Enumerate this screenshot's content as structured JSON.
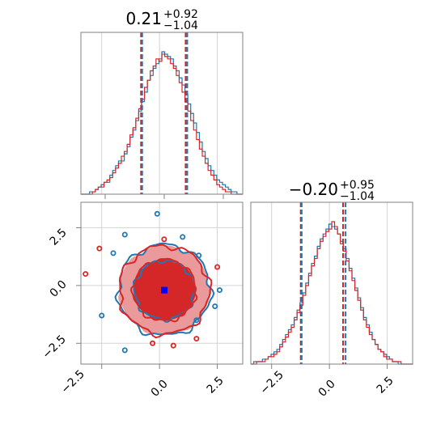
{
  "colors": {
    "blue": "#1f77b4",
    "red": "#d62728",
    "red_light": "#eb9a9b",
    "marker": "#0000ff",
    "grid": "#d3d3d3",
    "spine": "#808080"
  },
  "chart_data": [
    {
      "panel": "hist_param_0",
      "type": "histogram",
      "title": {
        "main": "0.21",
        "sup": "+0.92",
        "sub": "−1.04"
      },
      "xlim": [
        -3.4,
        3.6
      ],
      "quantiles": {
        "red": [
          -0.8,
          0.21,
          1.13
        ],
        "blue": [
          -0.75,
          0.21,
          1.2
        ]
      },
      "series": [
        {
          "color": "blue",
          "bin_edges": [
            -3.4,
            3.6
          ],
          "counts": [
            0,
            0,
            0,
            1,
            1,
            2,
            3,
            4,
            5,
            5,
            8,
            10,
            12,
            14,
            14,
            17,
            20,
            24,
            27,
            31,
            35,
            39,
            43,
            48,
            50,
            53,
            55,
            57,
            60,
            59,
            58,
            57,
            54,
            52,
            49,
            46,
            42,
            38,
            34,
            30,
            26,
            22,
            18,
            15,
            12,
            10,
            8,
            6,
            5,
            4,
            3,
            2,
            1,
            1,
            0,
            0
          ]
        },
        {
          "color": "red",
          "bin_edges": [
            -3.4,
            3.6
          ],
          "counts": [
            0,
            0,
            0,
            0,
            1,
            2,
            3,
            3,
            5,
            6,
            7,
            9,
            11,
            13,
            16,
            18,
            21,
            25,
            28,
            32,
            36,
            40,
            45,
            48,
            52,
            54,
            57,
            56,
            59,
            58,
            57,
            55,
            53,
            50,
            47,
            43,
            39,
            35,
            31,
            27,
            23,
            19,
            16,
            13,
            10,
            8,
            6,
            4,
            3,
            2,
            1,
            1,
            0,
            0,
            0,
            0
          ]
        }
      ]
    },
    {
      "panel": "joint_param_0_param_1",
      "type": "contour",
      "xlim": [
        -3.4,
        3.6
      ],
      "ylim": [
        -3.4,
        3.6
      ],
      "xticks": [
        "−2.5",
        "0.0",
        "2.5"
      ],
      "yticks": [
        "2.5",
        "0.0",
        "−2.5"
      ],
      "truth": {
        "x": 0.21,
        "y": -0.2
      },
      "levels": [
        {
          "series": "blue",
          "radius": 2.0
        },
        {
          "series": "red",
          "radius": 1.95
        },
        {
          "series": "blue",
          "radius": 1.3
        },
        {
          "series": "red",
          "radius": 1.35
        }
      ]
    },
    {
      "panel": "hist_param_1",
      "type": "histogram",
      "title": {
        "main": "−0.20",
        "sup": "+0.95",
        "sub": "−1.04"
      },
      "xlim": [
        -3.4,
        3.6
      ],
      "xticks": [
        "−2.5",
        "0.0",
        "2.5"
      ],
      "quantiles": {
        "red": [
          -1.24,
          -0.2,
          0.59
        ],
        "blue": [
          -1.2,
          -0.2,
          0.7
        ]
      },
      "series": [
        {
          "color": "blue",
          "bin_edges": [
            -3.4,
            3.6
          ],
          "counts": [
            0,
            1,
            1,
            1,
            2,
            2,
            3,
            4,
            5,
            6,
            8,
            10,
            12,
            14,
            16,
            19,
            22,
            25,
            29,
            33,
            37,
            41,
            44,
            48,
            51,
            53,
            55,
            57,
            56,
            55,
            53,
            50,
            47,
            43,
            39,
            35,
            31,
            27,
            23,
            19,
            16,
            13,
            10,
            8,
            6,
            5,
            4,
            3,
            2,
            1,
            1,
            0,
            0,
            0,
            0,
            0
          ]
        },
        {
          "color": "red",
          "bin_edges": [
            -3.4,
            3.6
          ],
          "counts": [
            0,
            0,
            1,
            1,
            1,
            2,
            3,
            3,
            4,
            5,
            7,
            9,
            11,
            13,
            15,
            18,
            21,
            24,
            28,
            32,
            36,
            40,
            43,
            47,
            50,
            52,
            54,
            55,
            58,
            56,
            53,
            49,
            46,
            42,
            38,
            34,
            30,
            26,
            22,
            18,
            15,
            12,
            10,
            8,
            6,
            5,
            3,
            2,
            2,
            1,
            1,
            1,
            0,
            0,
            0,
            0
          ]
        }
      ]
    }
  ]
}
